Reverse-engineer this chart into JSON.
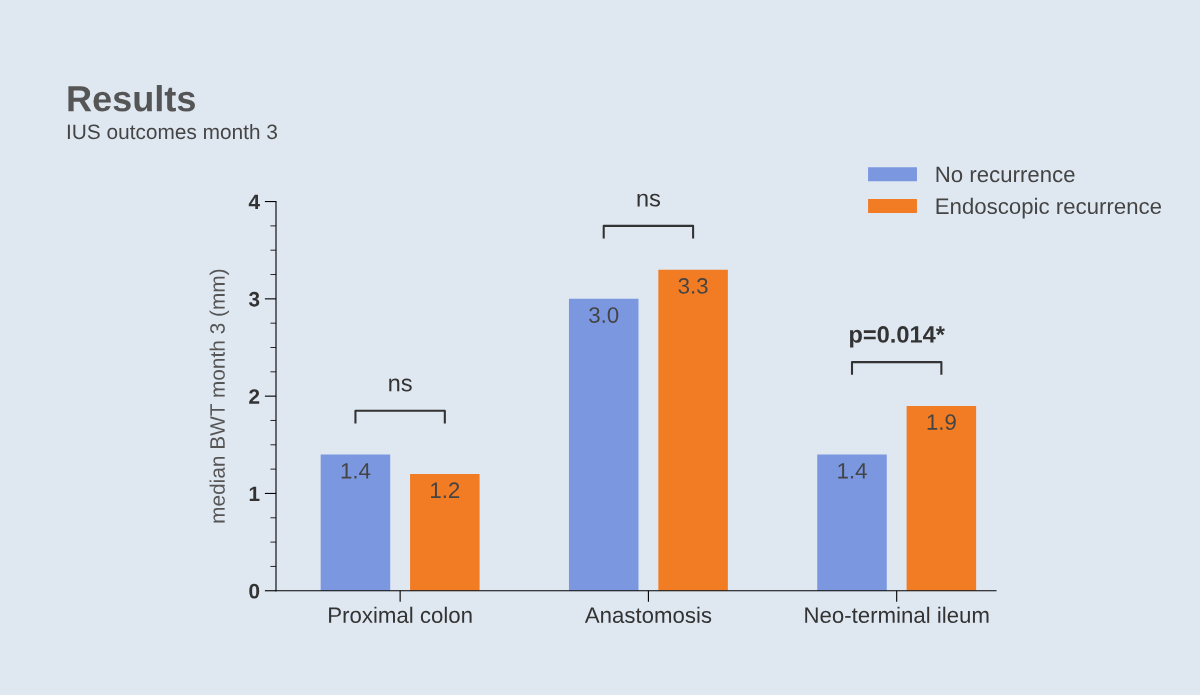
{
  "chart_data": {
    "type": "bar",
    "title": "Results",
    "subtitle": "IUS outcomes month 3",
    "ylabel": "median BWT month 3 (mm)",
    "categories": [
      "Proximal colon",
      "Anastomosis",
      "Neo-terminal ileum"
    ],
    "series": [
      {
        "name": "No recurrence",
        "color": "#7b97e0",
        "values": [
          1.4,
          3.0,
          1.4
        ],
        "value_labels": [
          "1.4",
          "3.0",
          "1.4"
        ]
      },
      {
        "name": "Endoscopic recurrence",
        "color": "#f27c24",
        "values": [
          1.2,
          3.3,
          1.9
        ],
        "value_labels": [
          "1.2",
          "3.3",
          "1.9"
        ]
      }
    ],
    "ylim": [
      0,
      4
    ],
    "yticks": [
      0,
      1,
      2,
      3,
      4
    ],
    "grid": false,
    "legend": "top right",
    "annotations": [
      "ns",
      "ns",
      "p=0.014*"
    ]
  }
}
